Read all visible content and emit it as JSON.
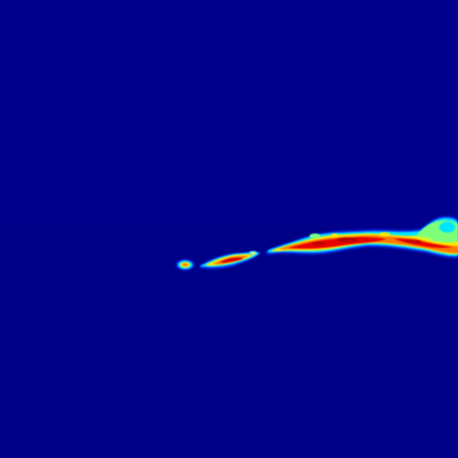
{
  "image": {
    "subject": "heat-plume-colormap-render",
    "colormap": "jet",
    "colors": {
      "background": "#00008a",
      "background_lower": "#000086",
      "blue": "#0a3cff",
      "cyan": "#00e5ff",
      "green": "#7dff7a",
      "yellow": "#ffe600",
      "orange": "#ff7a00",
      "red": "#e80000",
      "dark_red": "#b80000"
    }
  }
}
